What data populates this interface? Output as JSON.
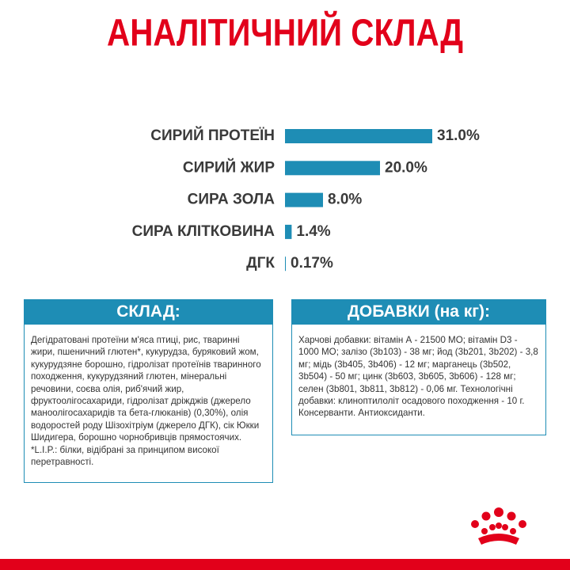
{
  "chart_data": {
    "type": "bar",
    "orientation": "horizontal",
    "title": "АНАЛІТИЧНИЙ СКЛАД",
    "categories": [
      "СИРИЙ ПРОТЕЇН",
      "СИРИЙ ЖИР",
      "СИРА ЗОЛА",
      "СИРА КЛІТКОВИНА",
      "ДГК"
    ],
    "values": [
      31.0,
      20.0,
      8.0,
      1.4,
      0.17
    ],
    "value_labels": [
      "31.0%",
      "20.0%",
      "8.0%",
      "1.4%",
      "0.17%"
    ],
    "color": "#1e8db5"
  },
  "sections": [
    {
      "title": "СКЛАД:",
      "text": "Дегідратовані протеїни м'яса птиці, рис, тваринні жири, пшеничний глютен*, кукурудза, буряковий жом, кукурудзяне борошно, гідролізат протеїнів тваринного походження, кукурудзяний глютен, мінеральні речовини, соєва олія, риб'ячий жир, фруктоолігосахариди, гідролізат дріжджів (джерело маноолігосахаридів та бета-глюканів) (0,30%), олія водоростей роду Шізохітріум (джерело ДГК), сік Юкки Шидигера, борошно чорнобривців прямостоячих.\n*L.I.P.: білки, відібрані за принципом високої перетравності."
    },
    {
      "title": "ДОБАВКИ (на кг):",
      "text": "Харчові добавки: вітамін А - 21500 МО; вітамін D3 - 1000 МО; залізо (3b103) - 38 мг; йод (3b201, 3b202) - 3,8 мг; мідь (3b405, 3b406) - 12 мг; марганець (3b502, 3b504) - 50 мг; цинк (3b603, 3b605, 3b606) - 128 мг; селен (3b801, 3b811, 3b812) - 0,06 мг. Технологічні добавки: клиноптилоліт осадового походження - 10 г. Консерванти. Антиоксиданти."
    }
  ]
}
